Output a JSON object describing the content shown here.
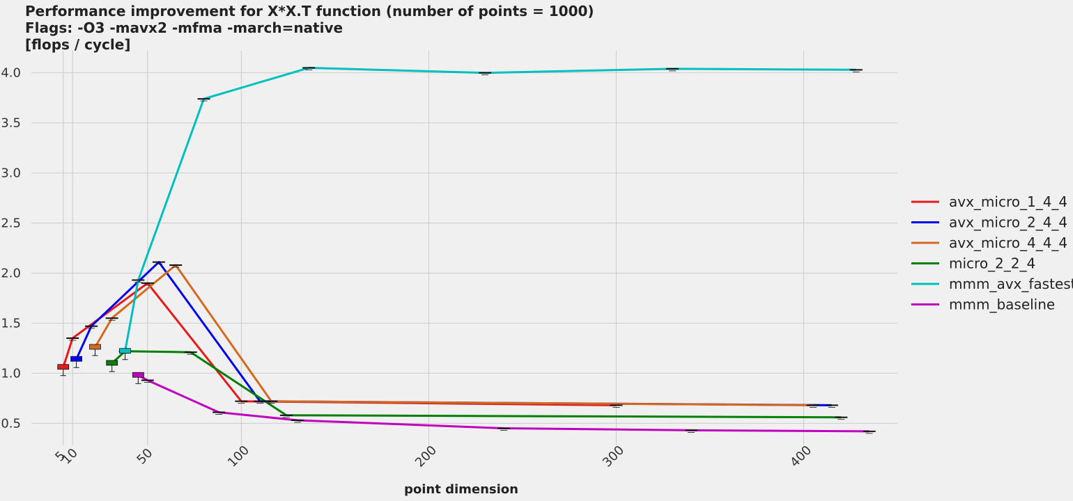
{
  "chart_data": {
    "type": "line",
    "title_lines": [
      "Performance improvement for X*X.T function (number of points = 1000)",
      "Flags: -O3 -mavx2 -mfma -march=native",
      "[flops / cycle]"
    ],
    "xlabel": "point dimension",
    "ylabel": "",
    "xlim": [
      -12,
      450
    ],
    "ylim": [
      0.28,
      4.22
    ],
    "xticks": [
      5,
      10,
      50,
      100,
      200,
      300,
      400
    ],
    "xtick_labels": [
      "5",
      "10",
      "50",
      "100",
      "200",
      "300",
      "400"
    ],
    "yticks": [
      0.5,
      1.0,
      1.5,
      2.0,
      2.5,
      3.0,
      3.5,
      4.0
    ],
    "ytick_labels": [
      "0.5",
      "1.0",
      "1.5",
      "2.0",
      "2.5",
      "3.0",
      "3.5",
      "4.0"
    ],
    "grid": true,
    "legend_position": "right",
    "series": [
      {
        "name": "avx_micro_1_4_4",
        "color": "#e41a1c",
        "x": [
          5,
          10,
          50,
          100,
          300
        ],
        "y": [
          1.06,
          1.35,
          1.9,
          0.72,
          0.68
        ]
      },
      {
        "name": "avx_micro_2_4_4",
        "color": "#0000ee",
        "x": [
          12,
          20,
          56,
          110,
          415
        ],
        "y": [
          1.14,
          1.47,
          2.11,
          0.72,
          0.68
        ]
      },
      {
        "name": "avx_micro_4_4_4",
        "color": "#d2691e",
        "x": [
          22,
          31,
          65,
          116,
          405
        ],
        "y": [
          1.26,
          1.55,
          2.08,
          0.72,
          0.68
        ]
      },
      {
        "name": "micro_2_2_4",
        "color": "#008000",
        "x": [
          31,
          38,
          73,
          124,
          420
        ],
        "y": [
          1.1,
          1.22,
          1.21,
          0.58,
          0.56
        ]
      },
      {
        "name": "mmm_avx_fastest",
        "color": "#00bfbf",
        "x": [
          38,
          45,
          80,
          136,
          230,
          330,
          428
        ],
        "y": [
          1.22,
          1.93,
          3.74,
          4.05,
          4.0,
          4.04,
          4.03
        ]
      },
      {
        "name": "mmm_baseline",
        "color": "#bf00bf",
        "x": [
          45,
          50,
          88,
          130,
          240,
          340,
          435
        ],
        "y": [
          0.98,
          0.93,
          0.61,
          0.53,
          0.45,
          0.43,
          0.42
        ]
      }
    ]
  }
}
